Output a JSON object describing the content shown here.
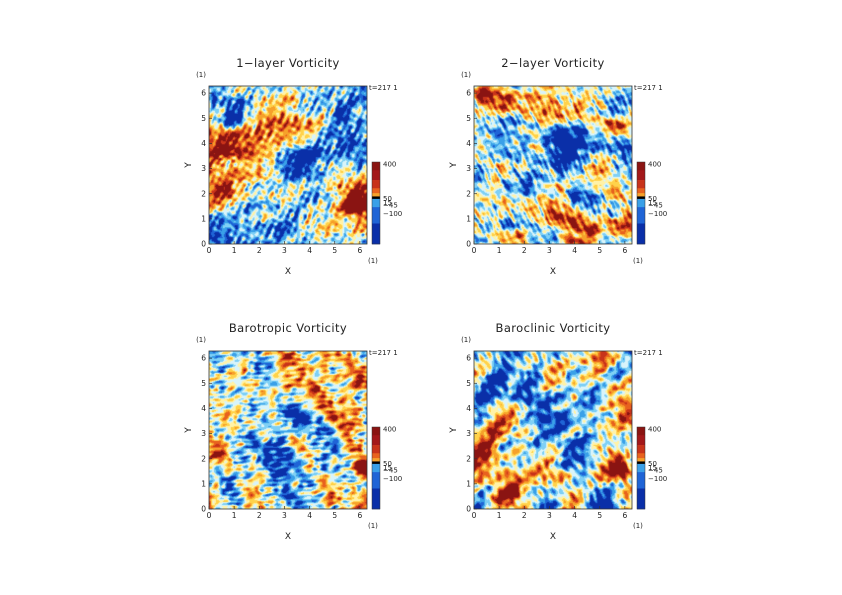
{
  "figure": {
    "colors": {
      "colormap": [
        "#0a2fa8",
        "#1f64d6",
        "#3aa0e8",
        "#7fd0f5",
        "#d8f4fa",
        "#fff2a8",
        "#ffd24a",
        "#f6a12a",
        "#e8621e",
        "#c8331a",
        "#8a1412"
      ],
      "axis": "#333333",
      "text": "#222222"
    }
  },
  "chart_data": [
    {
      "type": "heatmap",
      "title": "1−layer Vorticity",
      "xlabel": "X",
      "ylabel": "Y",
      "x_unit": "(1)",
      "y_unit": "(1)",
      "time_label": "t=217 1",
      "xlim": [
        0,
        6.283
      ],
      "ylim": [
        0,
        6.283
      ],
      "xticks": [
        "0",
        "1",
        "2",
        "3",
        "4",
        "5",
        "6"
      ],
      "yticks": [
        "0",
        "1",
        "2",
        "3",
        "4",
        "5",
        "6"
      ],
      "colorbar": {
        "labels": [
          "400",
          "50",
          "15",
          "−45",
          "−100"
        ]
      },
      "field_seed": 11,
      "features": [
        {
          "x": 5.8,
          "y": 1.6,
          "r": 0.9,
          "amp": 2.6
        },
        {
          "x": 3.7,
          "y": 3.4,
          "r": 1.3,
          "amp": -1.5
        },
        {
          "x": 1.0,
          "y": 4.9,
          "r": 1.1,
          "amp": -1.8
        },
        {
          "x": 5.3,
          "y": 5.2,
          "r": 0.9,
          "amp": -1.6
        },
        {
          "x": 0.6,
          "y": 2.2,
          "r": 1.3,
          "amp": 1.4
        },
        {
          "x": 2.2,
          "y": 1.2,
          "r": 1.1,
          "amp": 0.9
        },
        {
          "x": 3.2,
          "y": 5.9,
          "r": 0.8,
          "amp": 0.6
        }
      ]
    },
    {
      "type": "heatmap",
      "title": "2−layer Vorticity",
      "xlabel": "X",
      "ylabel": "Y",
      "x_unit": "(1)",
      "y_unit": "(1)",
      "time_label": "t=217 1",
      "xlim": [
        0,
        6.283
      ],
      "ylim": [
        0,
        6.283
      ],
      "xticks": [
        "0",
        "1",
        "2",
        "3",
        "4",
        "5",
        "6"
      ],
      "yticks": [
        "0",
        "1",
        "2",
        "3",
        "4",
        "5",
        "6"
      ],
      "colorbar": {
        "labels": [
          "400",
          "50",
          "15",
          "−45",
          "−100"
        ]
      },
      "field_seed": 23,
      "features": [
        {
          "x": 3.6,
          "y": 3.6,
          "r": 1.4,
          "amp": -1.6
        },
        {
          "x": 1.5,
          "y": 0.8,
          "r": 1.0,
          "amp": -1.4
        },
        {
          "x": 2.8,
          "y": 5.6,
          "r": 1.2,
          "amp": 1.1
        },
        {
          "x": 5.5,
          "y": 4.6,
          "r": 0.9,
          "amp": 0.9
        },
        {
          "x": 0.4,
          "y": 5.9,
          "r": 0.8,
          "amp": 1.0
        },
        {
          "x": 5.6,
          "y": 1.4,
          "r": 1.0,
          "amp": -0.9
        },
        {
          "x": 4.6,
          "y": 0.6,
          "r": 0.9,
          "amp": 0.8
        }
      ]
    },
    {
      "type": "heatmap",
      "title": "Barotropic Vorticity",
      "xlabel": "X",
      "ylabel": "Y",
      "x_unit": "(1)",
      "y_unit": "(1)",
      "time_label": "t=217 1",
      "xlim": [
        0,
        6.283
      ],
      "ylim": [
        0,
        6.283
      ],
      "xticks": [
        "0",
        "1",
        "2",
        "3",
        "4",
        "5",
        "6"
      ],
      "yticks": [
        "0",
        "1",
        "2",
        "3",
        "4",
        "5",
        "6"
      ],
      "colorbar": {
        "labels": [
          "400",
          "50",
          "15",
          "−45",
          "−100"
        ]
      },
      "field_seed": 37,
      "features": [
        {
          "x": 3.6,
          "y": 3.8,
          "r": 1.2,
          "amp": -1.2
        },
        {
          "x": 6.0,
          "y": 1.6,
          "r": 0.7,
          "amp": 2.2
        },
        {
          "x": 0.5,
          "y": 2.4,
          "r": 1.3,
          "amp": 1.0
        },
        {
          "x": 5.0,
          "y": 5.6,
          "r": 0.8,
          "amp": -0.9
        },
        {
          "x": 2.0,
          "y": 0.8,
          "r": 0.9,
          "amp": 0.7
        },
        {
          "x": 1.2,
          "y": 5.0,
          "r": 0.9,
          "amp": -0.6
        }
      ]
    },
    {
      "type": "heatmap",
      "title": "Baroclinic Vorticity",
      "xlabel": "X",
      "ylabel": "Y",
      "x_unit": "(1)",
      "y_unit": "(1)",
      "time_label": "t=217 1",
      "xlim": [
        0,
        6.283
      ],
      "ylim": [
        0,
        6.283
      ],
      "xticks": [
        "0",
        "1",
        "2",
        "3",
        "4",
        "5",
        "6"
      ],
      "yticks": [
        "0",
        "1",
        "2",
        "3",
        "4",
        "5",
        "6"
      ],
      "colorbar": {
        "labels": [
          "400",
          "50",
          "15",
          "−45",
          "−100"
        ]
      },
      "field_seed": 51,
      "features": [
        {
          "x": 5.9,
          "y": 1.6,
          "r": 0.9,
          "amp": 2.3
        },
        {
          "x": 3.6,
          "y": 3.5,
          "r": 1.2,
          "amp": -1.5
        },
        {
          "x": 1.0,
          "y": 5.0,
          "r": 1.2,
          "amp": -1.7
        },
        {
          "x": 5.6,
          "y": 5.4,
          "r": 0.9,
          "amp": -1.3
        },
        {
          "x": 0.6,
          "y": 2.2,
          "r": 1.2,
          "amp": 1.3
        },
        {
          "x": 1.5,
          "y": 0.7,
          "r": 0.8,
          "amp": 1.2
        },
        {
          "x": 3.5,
          "y": 1.2,
          "r": 1.0,
          "amp": 0.8
        }
      ]
    }
  ]
}
